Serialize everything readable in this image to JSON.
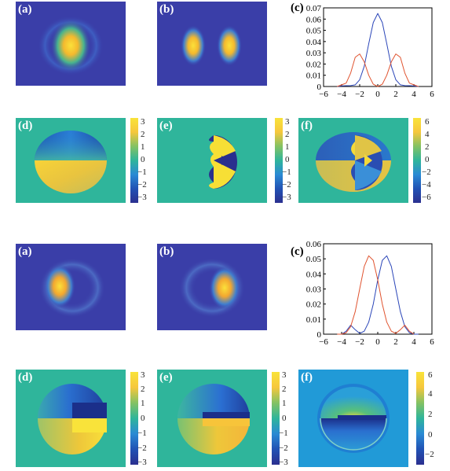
{
  "panel_labels": [
    "(a)",
    "(b)",
    "(c)",
    "(d)",
    "(e)",
    "(f)"
  ],
  "colors": {
    "background_dark": "#3a3ea8",
    "background_teal": "#2fb59b",
    "series_blue": "#2a45b8",
    "series_red": "#e0532f"
  },
  "phase_colorbar_ticks": [
    "3",
    "2",
    "1",
    "0",
    "−1",
    "−2",
    "−3"
  ],
  "sum_colorbar_ticks_top": [
    "6",
    "4",
    "2",
    "0",
    "−2",
    "−4",
    "−6"
  ],
  "sum_colorbar_ticks_bottom": [
    "6",
    "4",
    "2",
    "0",
    "−2"
  ],
  "chart_data": [
    {
      "type": "line",
      "title": "",
      "xlabel": "",
      "ylabel": "",
      "xlim": [
        -6,
        6
      ],
      "ylim": [
        0,
        0.07
      ],
      "xticks": [
        -6,
        -4,
        -2,
        0,
        2,
        4,
        6
      ],
      "yticks": [
        0,
        0.01,
        0.02,
        0.03,
        0.04,
        0.05,
        0.06,
        0.07
      ],
      "xtick_labels": [
        "−6",
        "−4",
        "−2",
        "0",
        "2",
        "4",
        "6"
      ],
      "ytick_labels": [
        "0",
        "0.01",
        "0.02",
        "0.03",
        "0.04",
        "0.05",
        "0.06",
        "0.07"
      ],
      "series": [
        {
          "color": "#2a45b8",
          "x": [
            -4.5,
            -4,
            -3.5,
            -3,
            -2.5,
            -2,
            -1.5,
            -1,
            -0.5,
            0,
            0.5,
            1,
            1.5,
            2,
            2.5,
            3,
            3.5,
            4,
            4.5
          ],
          "y": [
            0,
            0.0005,
            0.0007,
            0.0008,
            0.0015,
            0.006,
            0.018,
            0.038,
            0.057,
            0.065,
            0.057,
            0.038,
            0.018,
            0.006,
            0.0015,
            0.0008,
            0.0007,
            0.0005,
            0
          ]
        },
        {
          "color": "#e0532f",
          "x": [
            -4.5,
            -4,
            -3.5,
            -3,
            -2.5,
            -2,
            -1.5,
            -1,
            -0.5,
            0,
            0.5,
            1,
            1.5,
            2,
            2.5,
            3,
            3.5,
            4,
            4.5
          ],
          "y": [
            0,
            0.0015,
            0.003,
            0.012,
            0.026,
            0.029,
            0.022,
            0.01,
            0.002,
            0,
            0.002,
            0.01,
            0.022,
            0.029,
            0.026,
            0.012,
            0.003,
            0.0015,
            0
          ]
        }
      ]
    },
    {
      "type": "line",
      "title": "",
      "xlabel": "",
      "ylabel": "",
      "xlim": [
        -6,
        6
      ],
      "ylim": [
        0,
        0.06
      ],
      "xticks": [
        -6,
        -4,
        -2,
        0,
        2,
        4,
        6
      ],
      "yticks": [
        0,
        0.01,
        0.02,
        0.03,
        0.04,
        0.05,
        0.06
      ],
      "xtick_labels": [
        "−6",
        "−4",
        "−2",
        "0",
        "2",
        "4",
        "6"
      ],
      "ytick_labels": [
        "0",
        "0.01",
        "0.02",
        "0.03",
        "0.04",
        "0.05",
        "0.06"
      ],
      "series": [
        {
          "color": "#2a45b8",
          "x": [
            -4,
            -3.5,
            -3,
            -2.5,
            -2,
            -1.5,
            -1,
            -0.5,
            0,
            0.5,
            1,
            1.5,
            2,
            2.5,
            3,
            3.5,
            4,
            4.5
          ],
          "y": [
            0,
            0.002,
            0.006,
            0.003,
            0.0005,
            0.002,
            0.008,
            0.02,
            0.036,
            0.049,
            0.052,
            0.045,
            0.03,
            0.015,
            0.005,
            0.001,
            0,
            0
          ]
        },
        {
          "color": "#e0532f",
          "x": [
            -4.5,
            -4,
            -3.5,
            -3,
            -2.5,
            -2,
            -1.5,
            -1,
            -0.5,
            0,
            0.5,
            1,
            1.5,
            2,
            2.5,
            3,
            3.5,
            4
          ],
          "y": [
            0,
            0,
            0.001,
            0.005,
            0.015,
            0.03,
            0.045,
            0.052,
            0.049,
            0.036,
            0.02,
            0.008,
            0.002,
            0.0005,
            0.003,
            0.006,
            0.002,
            0
          ]
        }
      ]
    }
  ]
}
